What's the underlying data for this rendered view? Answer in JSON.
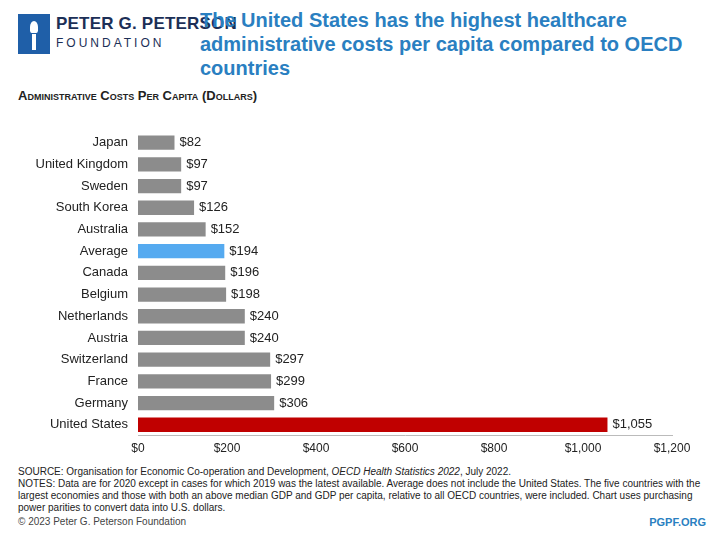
{
  "header": {
    "logo_line1": "PETER G. PETERSON",
    "logo_line2": "FOUNDATION"
  },
  "chart_data": {
    "type": "bar",
    "title": "The United States has the highest healthcare administrative costs per capita compared to OECD countries",
    "subtitle": "Administrative Costs Per Capita (Dollars)",
    "orientation": "horizontal",
    "categories": [
      "Japan",
      "United Kingdom",
      "Sweden",
      "South Korea",
      "Australia",
      "Average",
      "Canada",
      "Belgium",
      "Netherlands",
      "Austria",
      "Switzerland",
      "France",
      "Germany",
      "United States"
    ],
    "values": [
      82,
      97,
      97,
      126,
      152,
      194,
      196,
      198,
      240,
      240,
      297,
      299,
      306,
      1055
    ],
    "value_labels": [
      "$82",
      "$97",
      "$97",
      "$126",
      "$152",
      "$194",
      "$196",
      "$198",
      "$240",
      "$240",
      "$297",
      "$299",
      "$306",
      "$1,055"
    ],
    "colors": [
      "#8c8c8c",
      "#8c8c8c",
      "#8c8c8c",
      "#8c8c8c",
      "#8c8c8c",
      "#55aaf0",
      "#8c8c8c",
      "#8c8c8c",
      "#8c8c8c",
      "#8c8c8c",
      "#8c8c8c",
      "#8c8c8c",
      "#8c8c8c",
      "#c00000"
    ],
    "xlim": [
      0,
      1200
    ],
    "xticks": [
      {
        "value": 0,
        "label": "$0"
      },
      {
        "value": 200,
        "label": "$200"
      },
      {
        "value": 400,
        "label": "$400"
      },
      {
        "value": 600,
        "label": "$600"
      },
      {
        "value": 800,
        "label": "$800"
      },
      {
        "value": 1000,
        "label": "$1,000"
      },
      {
        "value": 1200,
        "label": "$1,200"
      }
    ],
    "grid": false,
    "data_labels": true
  },
  "footer": {
    "source_prefix": "SOURCE: Organisation for Economic Co-operation and Development, ",
    "source_italic": "OECD Health Statistics 2022",
    "source_suffix": ", July 2022.",
    "notes": "NOTES: Data are for 2020 except in cases for which 2019 was the latest available. Average does not include the United States. The five countries with the largest economies and those with both an above median GDP and GDP per capita, relative to all OECD countries, were included. Chart uses purchasing power parities to convert data into U.S. dollars.",
    "copyright": "© 2023 Peter G. Peterson Foundation",
    "site": "PGPF.ORG"
  }
}
